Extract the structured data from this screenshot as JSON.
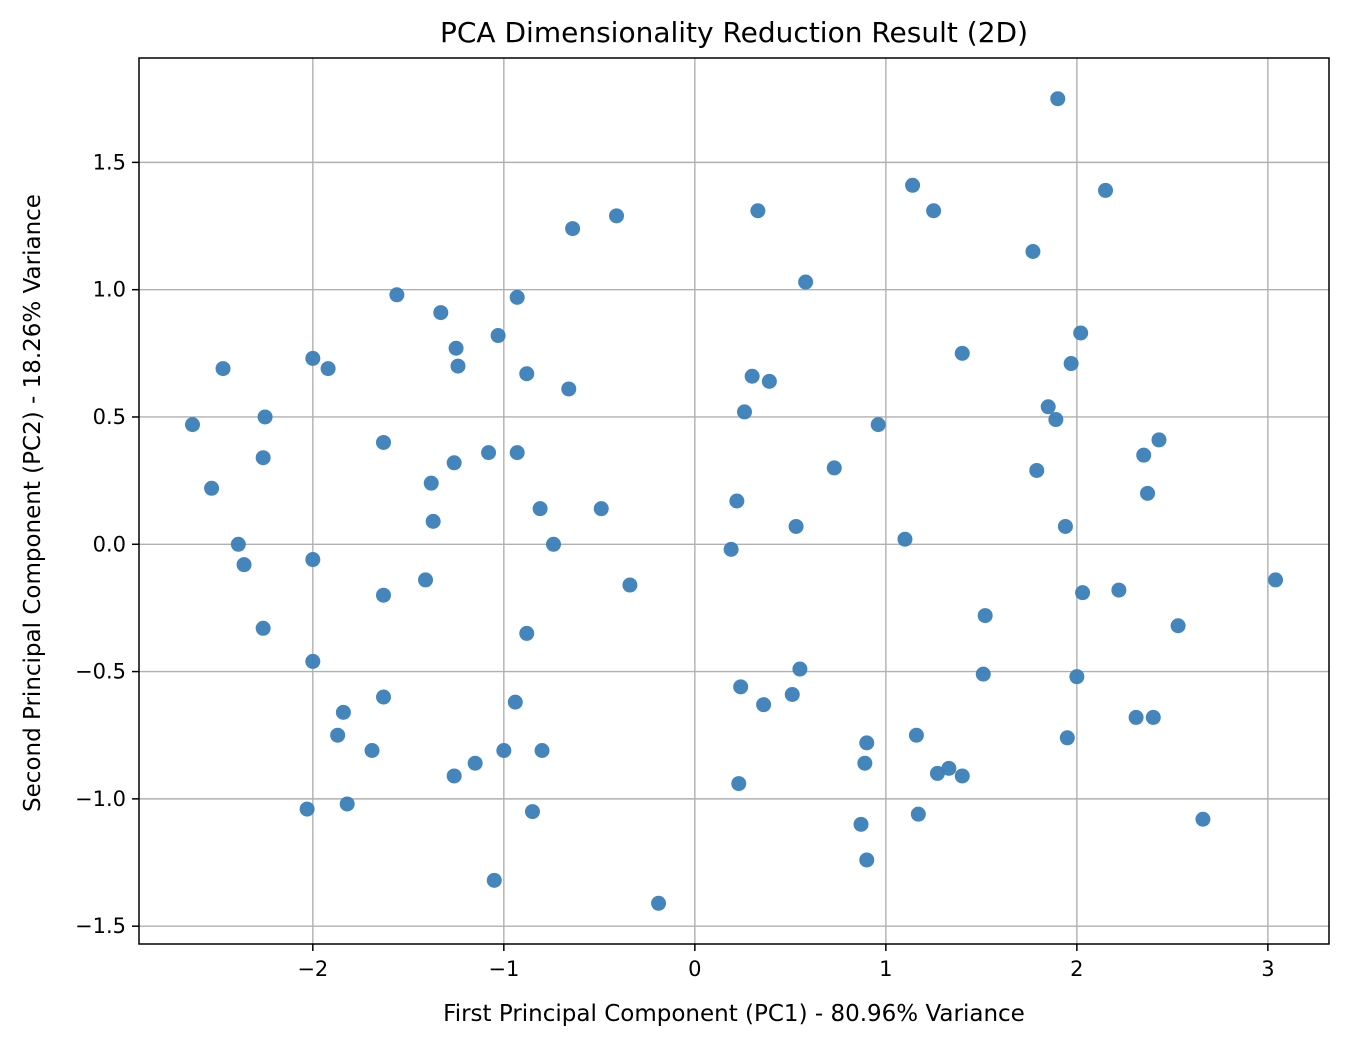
{
  "chart_data": {
    "type": "scatter",
    "title": "PCA Dimensionality Reduction Result (2D)",
    "xlabel": "First Principal Component (PC1) - 80.96% Variance",
    "ylabel": "Second Principal Component (PC2) - 18.26% Variance",
    "xlim": [
      -2.91,
      3.32
    ],
    "ylim": [
      -1.57,
      1.91
    ],
    "xticks": [
      -2,
      -1,
      0,
      1,
      2,
      3
    ],
    "xtick_labels": [
      "−2",
      "−1",
      "0",
      "1",
      "2",
      "3"
    ],
    "yticks": [
      -1.5,
      -1.0,
      -0.5,
      0.0,
      0.5,
      1.0,
      1.5
    ],
    "ytick_labels": [
      "−1.5",
      "−1.0",
      "−0.5",
      "0.0",
      "0.5",
      "1.0",
      "1.5"
    ],
    "grid": true,
    "marker_color": "#3a7eb8",
    "points": [
      {
        "x": -2.63,
        "y": 0.47
      },
      {
        "x": -2.47,
        "y": 0.69
      },
      {
        "x": -2.53,
        "y": 0.22
      },
      {
        "x": -2.39,
        "y": 0.0
      },
      {
        "x": -2.36,
        "y": -0.08
      },
      {
        "x": -2.25,
        "y": 0.5
      },
      {
        "x": -2.26,
        "y": 0.34
      },
      {
        "x": -2.26,
        "y": -0.33
      },
      {
        "x": -2.0,
        "y": 0.73
      },
      {
        "x": -1.92,
        "y": 0.69
      },
      {
        "x": -2.0,
        "y": -0.06
      },
      {
        "x": -2.0,
        "y": -0.46
      },
      {
        "x": -2.03,
        "y": -1.04
      },
      {
        "x": -1.82,
        "y": -1.02
      },
      {
        "x": -1.84,
        "y": -0.66
      },
      {
        "x": -1.87,
        "y": -0.75
      },
      {
        "x": -1.69,
        "y": -0.81
      },
      {
        "x": -1.63,
        "y": -0.6
      },
      {
        "x": -1.63,
        "y": -0.2
      },
      {
        "x": -1.63,
        "y": 0.4
      },
      {
        "x": -1.56,
        "y": 0.98
      },
      {
        "x": -1.33,
        "y": 0.91
      },
      {
        "x": -1.25,
        "y": 0.77
      },
      {
        "x": -1.24,
        "y": 0.7
      },
      {
        "x": -1.38,
        "y": 0.24
      },
      {
        "x": -1.37,
        "y": 0.09
      },
      {
        "x": -1.41,
        "y": -0.14
      },
      {
        "x": -1.26,
        "y": 0.32
      },
      {
        "x": -1.26,
        "y": -0.91
      },
      {
        "x": -1.15,
        "y": -0.86
      },
      {
        "x": -1.08,
        "y": 0.36
      },
      {
        "x": -1.05,
        "y": -1.32
      },
      {
        "x": -1.03,
        "y": 0.82
      },
      {
        "x": -1.0,
        "y": -0.81
      },
      {
        "x": -0.93,
        "y": 0.97
      },
      {
        "x": -0.93,
        "y": 0.36
      },
      {
        "x": -0.94,
        "y": -0.62
      },
      {
        "x": -0.88,
        "y": 0.67
      },
      {
        "x": -0.88,
        "y": -0.35
      },
      {
        "x": -0.85,
        "y": -1.05
      },
      {
        "x": -0.81,
        "y": 0.14
      },
      {
        "x": -0.8,
        "y": -0.81
      },
      {
        "x": -0.74,
        "y": 0.0
      },
      {
        "x": -0.66,
        "y": 0.61
      },
      {
        "x": -0.64,
        "y": 1.24
      },
      {
        "x": -0.49,
        "y": 0.14
      },
      {
        "x": -0.41,
        "y": 1.29
      },
      {
        "x": -0.34,
        "y": -0.16
      },
      {
        "x": -0.19,
        "y": -1.41
      },
      {
        "x": 0.19,
        "y": -0.02
      },
      {
        "x": 0.22,
        "y": 0.17
      },
      {
        "x": 0.23,
        "y": -0.94
      },
      {
        "x": 0.24,
        "y": -0.56
      },
      {
        "x": 0.26,
        "y": 0.52
      },
      {
        "x": 0.3,
        "y": 0.66
      },
      {
        "x": 0.33,
        "y": 1.31
      },
      {
        "x": 0.36,
        "y": -0.63
      },
      {
        "x": 0.39,
        "y": 0.64
      },
      {
        "x": 0.51,
        "y": -0.59
      },
      {
        "x": 0.53,
        "y": 0.07
      },
      {
        "x": 0.55,
        "y": -0.49
      },
      {
        "x": 0.58,
        "y": 1.03
      },
      {
        "x": 0.73,
        "y": 0.3
      },
      {
        "x": 0.87,
        "y": -1.1
      },
      {
        "x": 0.89,
        "y": -0.86
      },
      {
        "x": 0.9,
        "y": -0.78
      },
      {
        "x": 0.9,
        "y": -1.24
      },
      {
        "x": 0.96,
        "y": 0.47
      },
      {
        "x": 1.1,
        "y": 0.02
      },
      {
        "x": 1.14,
        "y": 1.41
      },
      {
        "x": 1.16,
        "y": -0.75
      },
      {
        "x": 1.17,
        "y": -1.06
      },
      {
        "x": 1.25,
        "y": 1.31
      },
      {
        "x": 1.27,
        "y": -0.9
      },
      {
        "x": 1.33,
        "y": -0.88
      },
      {
        "x": 1.4,
        "y": 0.75
      },
      {
        "x": 1.4,
        "y": -0.91
      },
      {
        "x": 1.51,
        "y": -0.51
      },
      {
        "x": 1.52,
        "y": -0.28
      },
      {
        "x": 1.77,
        "y": 1.15
      },
      {
        "x": 1.79,
        "y": 0.29
      },
      {
        "x": 1.85,
        "y": 0.54
      },
      {
        "x": 1.89,
        "y": 0.49
      },
      {
        "x": 1.9,
        "y": 1.75
      },
      {
        "x": 1.94,
        "y": 0.07
      },
      {
        "x": 1.95,
        "y": -0.76
      },
      {
        "x": 1.97,
        "y": 0.71
      },
      {
        "x": 2.0,
        "y": -0.52
      },
      {
        "x": 2.02,
        "y": 0.83
      },
      {
        "x": 2.03,
        "y": -0.19
      },
      {
        "x": 2.15,
        "y": 1.39
      },
      {
        "x": 2.22,
        "y": -0.18
      },
      {
        "x": 2.31,
        "y": -0.68
      },
      {
        "x": 2.35,
        "y": 0.35
      },
      {
        "x": 2.37,
        "y": 0.2
      },
      {
        "x": 2.4,
        "y": -0.68
      },
      {
        "x": 2.43,
        "y": 0.41
      },
      {
        "x": 2.53,
        "y": -0.32
      },
      {
        "x": 2.66,
        "y": -1.08
      },
      {
        "x": 3.04,
        "y": -0.14
      }
    ]
  }
}
